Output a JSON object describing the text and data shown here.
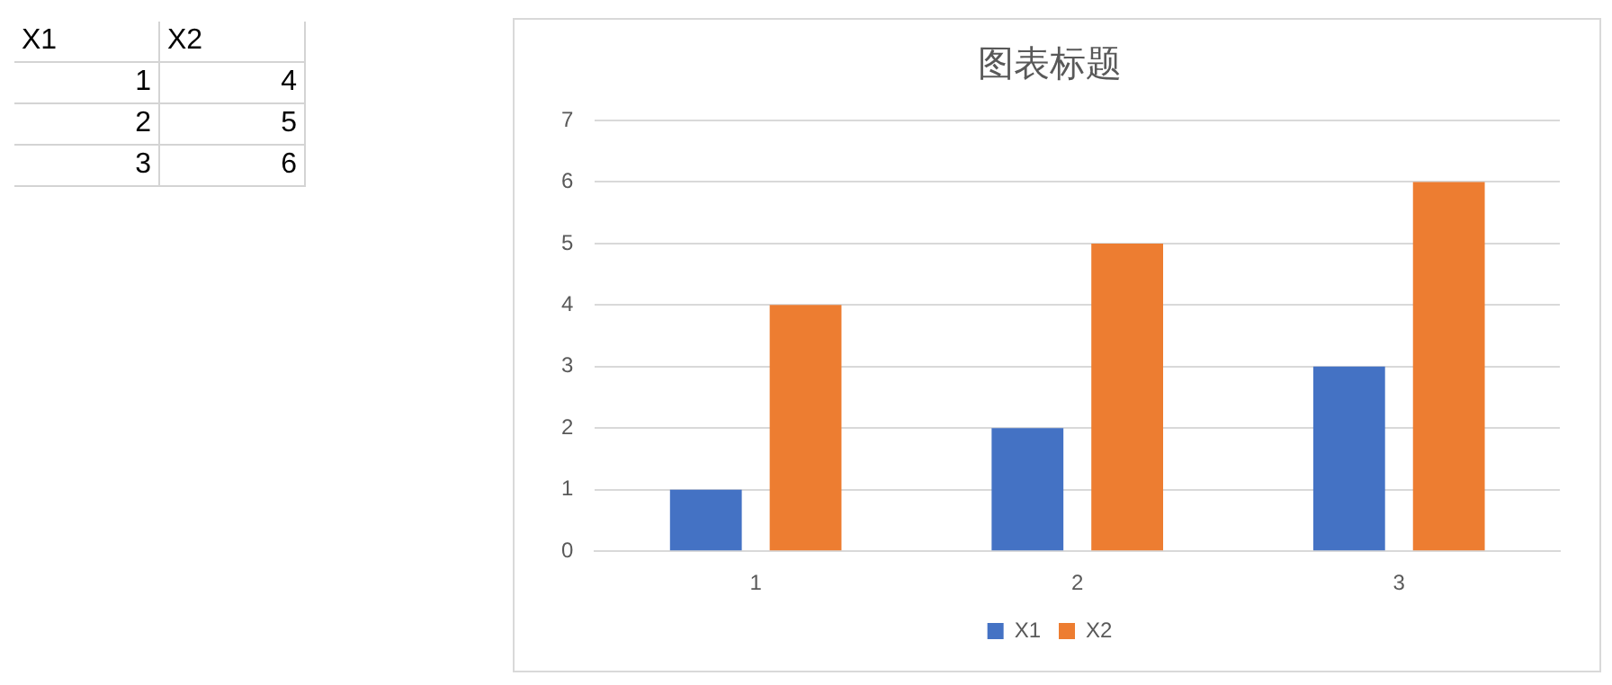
{
  "chart_data": [
    {
      "type": "other",
      "annotations": [
        "X1",
        "X2",
        "1",
        "4",
        "2",
        "5",
        "3",
        "6"
      ]
    },
    {
      "type": "bar",
      "title": "图表标题",
      "categories": [
        "1",
        "2",
        "3"
      ],
      "series": [
        {
          "name": "X1",
          "color": "#4472c4",
          "values": [
            1,
            2,
            3
          ]
        },
        {
          "name": "X2",
          "color": "#ed7d31",
          "values": [
            4,
            5,
            6
          ]
        }
      ],
      "ylim": [
        0,
        7
      ],
      "yticks": [
        0,
        1,
        2,
        3,
        4,
        5,
        6,
        7
      ],
      "grid": "y",
      "legend": "bottom"
    }
  ]
}
